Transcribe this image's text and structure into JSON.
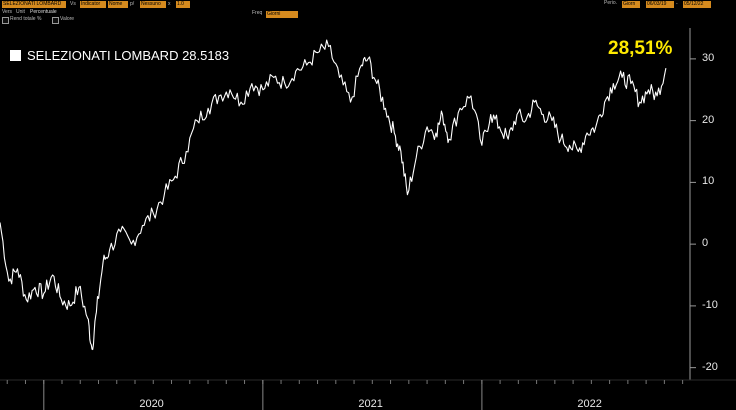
{
  "toolbar": {
    "security": "SELEZIONATI LOMBARD",
    "vs_label": "Vs",
    "vs_value": "Indicator",
    "compare_value": "Nome",
    "p_label": "p/",
    "p_value": "Nessuno",
    "x_label": "x",
    "x_value": "1.0",
    "period_label": "Perio.",
    "period_value": "Giorn",
    "date_from": "06/03/19",
    "date_to": "05/12/22",
    "row2_label_1": "Vers",
    "row2_label_2": "Unit",
    "row2_unit": "Percentuale",
    "freq_label": "Freq",
    "freq_value": "Giorni",
    "check_total_return": "Rend totale %",
    "check_value": "Valore"
  },
  "legend": {
    "label": "SELEZIONATI LOMBARD 28.5183",
    "color": "#ffffff"
  },
  "callout": {
    "text": "28,51%",
    "color": "#ffea00"
  },
  "chart_data": {
    "type": "line",
    "title": "",
    "xlabel": "",
    "ylabel": "",
    "ylim": [
      -22,
      35
    ],
    "xlim": [
      2019.8,
      2022.95
    ],
    "y_ticks": [
      -20,
      -10,
      0,
      10,
      20,
      30
    ],
    "y_tick_labels": [
      "-20",
      "-10",
      "0",
      "10",
      "20",
      "30"
    ],
    "x_tick_labels": [
      "2020",
      "2021",
      "2022"
    ],
    "grid": false,
    "legend_position": "top-left",
    "series": [
      {
        "name": "SELEZIONATI LOMBARD",
        "color": "#ffffff",
        "x": [
          2019.8,
          2019.84,
          2019.88,
          2019.92,
          2019.96,
          2020.0,
          2020.04,
          2020.08,
          2020.12,
          2020.16,
          2020.2,
          2020.22,
          2020.24,
          2020.27,
          2020.3,
          2020.35,
          2020.4,
          2020.45,
          2020.5,
          2020.55,
          2020.6,
          2020.65,
          2020.7,
          2020.75,
          2020.8,
          2020.85,
          2020.9,
          2020.95,
          2021.0,
          2021.05,
          2021.1,
          2021.15,
          2021.2,
          2021.25,
          2021.3,
          2021.35,
          2021.4,
          2021.45,
          2021.48,
          2021.52,
          2021.56,
          2021.6,
          2021.63,
          2021.66,
          2021.7,
          2021.75,
          2021.79,
          2021.82,
          2021.85,
          2021.9,
          2021.95,
          2022.0,
          2022.04,
          2022.08,
          2022.12,
          2022.16,
          2022.2,
          2022.24,
          2022.28,
          2022.32,
          2022.36,
          2022.4,
          2022.44,
          2022.48,
          2022.52,
          2022.56,
          2022.6,
          2022.64,
          2022.68,
          2022.72,
          2022.76,
          2022.8,
          2022.84
        ],
        "y": [
          3.5,
          -6,
          -4,
          -9,
          -7,
          -8,
          -5,
          -9,
          -10,
          -7,
          -12,
          -17,
          -11,
          -3,
          -1,
          2,
          0,
          3,
          5,
          8,
          11,
          15,
          20,
          22,
          24,
          25,
          23,
          26,
          25,
          27,
          26,
          28,
          29,
          31,
          32,
          27,
          23,
          29,
          30,
          26,
          22,
          18,
          15,
          8,
          14,
          19,
          18,
          21,
          17,
          22,
          24,
          16,
          21,
          19,
          17,
          21,
          20,
          23,
          21,
          20,
          17,
          16,
          15,
          18,
          19,
          23,
          26,
          27,
          26,
          23,
          25,
          24,
          28.5
        ]
      }
    ]
  }
}
